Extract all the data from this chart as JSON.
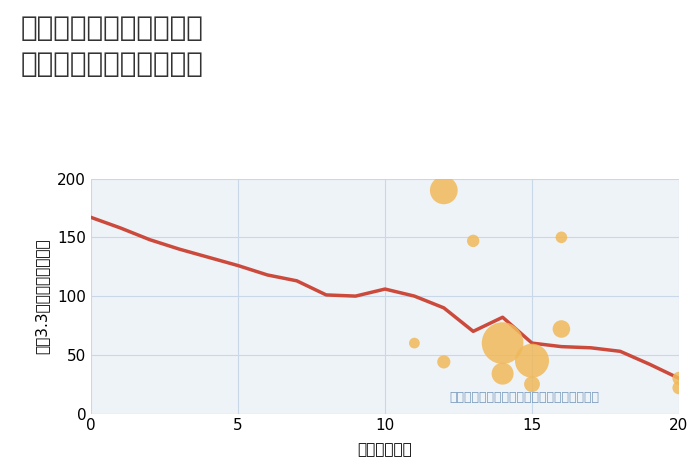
{
  "title_line1": "大阪府東大阪市本庄西の",
  "title_line2": "駅距離別中古戸建て価格",
  "xlabel": "駅距離（分）",
  "ylabel": "坪（3.3㎡）単価（万円）",
  "annotation": "円の大きさは、取引のあった物件面積を示す",
  "line_x": [
    0,
    1,
    2,
    3,
    4,
    5,
    6,
    7,
    8,
    9,
    10,
    11,
    12,
    13,
    14,
    15,
    16,
    17,
    18,
    19,
    20
  ],
  "line_y": [
    167,
    158,
    148,
    140,
    133,
    126,
    118,
    113,
    101,
    100,
    106,
    100,
    90,
    70,
    82,
    60,
    57,
    56,
    53,
    42,
    30
  ],
  "line_color": "#cc4a3c",
  "bubble_x": [
    12,
    13,
    11,
    12,
    14,
    14,
    15,
    15,
    16,
    16,
    20,
    20
  ],
  "bubble_y": [
    190,
    147,
    60,
    44,
    60,
    34,
    45,
    25,
    72,
    150,
    30,
    22
  ],
  "bubble_size": [
    400,
    80,
    60,
    90,
    900,
    250,
    600,
    130,
    160,
    70,
    90,
    90
  ],
  "bubble_color": "#f0b95a",
  "bubble_alpha": 0.85,
  "xlim": [
    0,
    20
  ],
  "ylim": [
    0,
    200
  ],
  "xticks": [
    0,
    5,
    10,
    15,
    20
  ],
  "yticks": [
    0,
    50,
    100,
    150,
    200
  ],
  "bg_color": "#eef3f8",
  "grid_color": "#c8d8e8",
  "title_color": "#333333",
  "title_fontsize": 20,
  "axis_label_fontsize": 11,
  "tick_fontsize": 11,
  "annotation_color": "#7899bb",
  "annotation_fontsize": 9,
  "line_width": 2.5
}
